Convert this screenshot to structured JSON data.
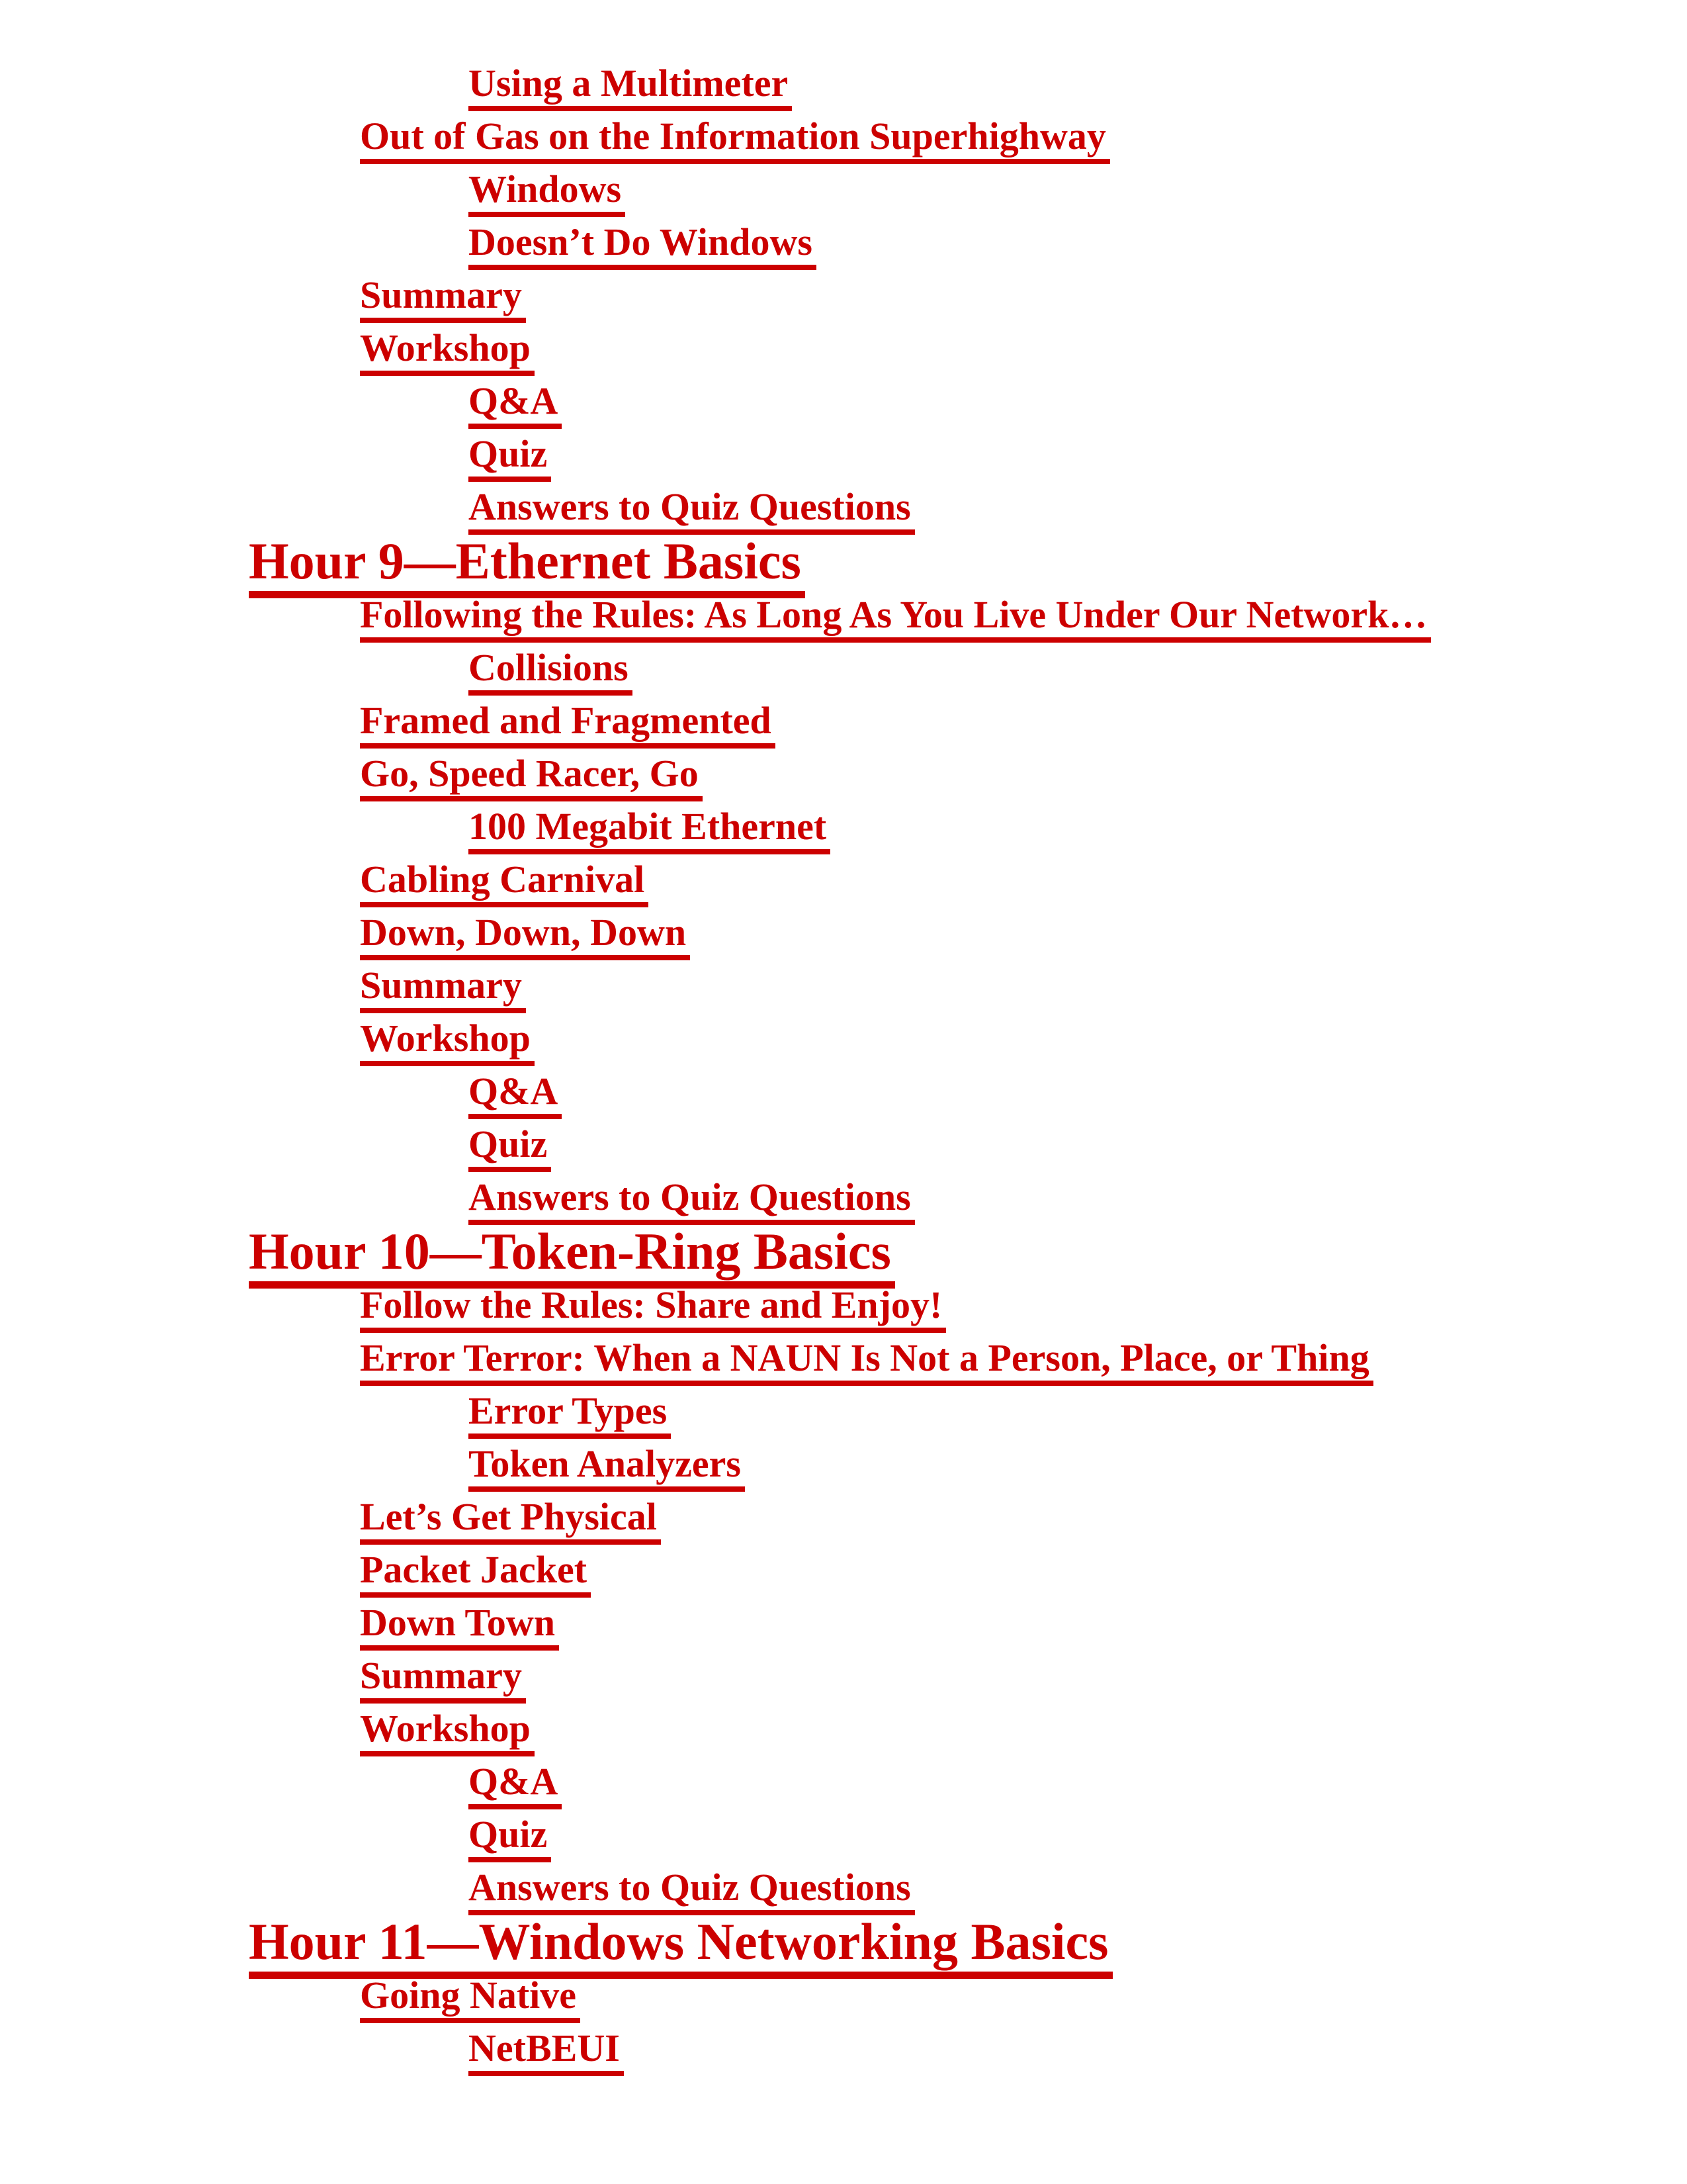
{
  "page": {
    "kind": "book-table-of-contents",
    "background_color": "#FFFFFF",
    "link_color": "#CC0000",
    "links_underlined": true
  },
  "toc_entries": [
    {
      "level": 2,
      "kind": "link",
      "text": "Using a Multimeter"
    },
    {
      "level": 1,
      "kind": "link",
      "text": "Out of Gas on the Information Superhighway"
    },
    {
      "level": 2,
      "kind": "link",
      "text": "Windows"
    },
    {
      "level": 2,
      "kind": "link",
      "text": "Doesn’t Do Windows"
    },
    {
      "level": 1,
      "kind": "link",
      "text": "Summary"
    },
    {
      "level": 1,
      "kind": "link",
      "text": "Workshop"
    },
    {
      "level": 2,
      "kind": "link",
      "text": "Q&A"
    },
    {
      "level": 2,
      "kind": "link",
      "text": "Quiz"
    },
    {
      "level": 2,
      "kind": "link",
      "text": "Answers to Quiz Questions"
    },
    {
      "level": 0,
      "kind": "heading",
      "text": "Hour 9—Ethernet Basics"
    },
    {
      "level": 1,
      "kind": "link",
      "text": "Following the Rules: As Long As You Live Under Our Network…"
    },
    {
      "level": 2,
      "kind": "link",
      "text": "Collisions"
    },
    {
      "level": 1,
      "kind": "link",
      "text": "Framed and Fragmented"
    },
    {
      "level": 1,
      "kind": "link",
      "text": "Go, Speed Racer, Go"
    },
    {
      "level": 2,
      "kind": "link",
      "text": "100 Megabit Ethernet"
    },
    {
      "level": 1,
      "kind": "link",
      "text": "Cabling Carnival"
    },
    {
      "level": 1,
      "kind": "link",
      "text": "Down, Down, Down"
    },
    {
      "level": 1,
      "kind": "link",
      "text": "Summary"
    },
    {
      "level": 1,
      "kind": "link",
      "text": "Workshop"
    },
    {
      "level": 2,
      "kind": "link",
      "text": "Q&A"
    },
    {
      "level": 2,
      "kind": "link",
      "text": "Quiz"
    },
    {
      "level": 2,
      "kind": "link",
      "text": "Answers to Quiz Questions"
    },
    {
      "level": 0,
      "kind": "heading",
      "text": "Hour 10—Token-Ring Basics"
    },
    {
      "level": 1,
      "kind": "link",
      "text": "Follow the Rules: Share and Enjoy!"
    },
    {
      "level": 1,
      "kind": "link",
      "text": "Error Terror: When a NAUN Is Not a Person, Place, or Thing"
    },
    {
      "level": 2,
      "kind": "link",
      "text": "Error Types"
    },
    {
      "level": 2,
      "kind": "link",
      "text": "Token Analyzers"
    },
    {
      "level": 1,
      "kind": "link",
      "text": "Let’s Get Physical"
    },
    {
      "level": 1,
      "kind": "link",
      "text": "Packet Jacket"
    },
    {
      "level": 1,
      "kind": "link",
      "text": "Down Town"
    },
    {
      "level": 1,
      "kind": "link",
      "text": "Summary"
    },
    {
      "level": 1,
      "kind": "link",
      "text": "Workshop"
    },
    {
      "level": 2,
      "kind": "link",
      "text": "Q&A"
    },
    {
      "level": 2,
      "kind": "link",
      "text": "Quiz"
    },
    {
      "level": 2,
      "kind": "link",
      "text": "Answers to Quiz Questions"
    },
    {
      "level": 0,
      "kind": "heading",
      "text": "Hour 11—Windows Networking Basics"
    },
    {
      "level": 1,
      "kind": "link",
      "text": "Going Native"
    },
    {
      "level": 2,
      "kind": "link",
      "text": "NetBEUI"
    }
  ]
}
